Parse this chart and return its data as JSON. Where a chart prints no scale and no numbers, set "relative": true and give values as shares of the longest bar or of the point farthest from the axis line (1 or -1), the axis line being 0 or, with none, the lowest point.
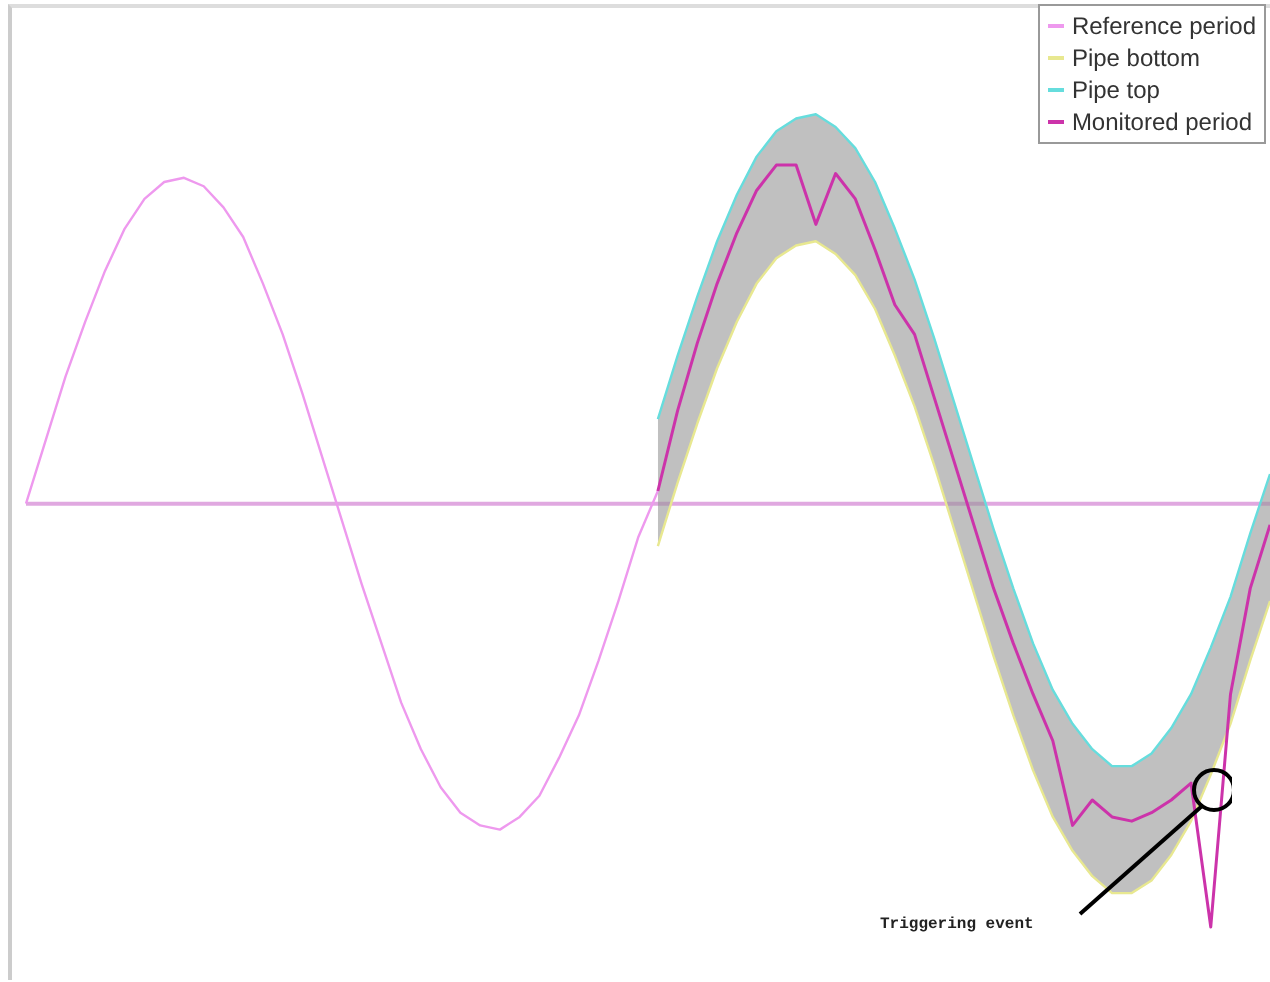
{
  "chart_data": {
    "type": "line",
    "relative": true,
    "legend": "top right",
    "marker": "none",
    "ref_lines": [
      {
        "axis": "y",
        "value": 0,
        "color": "#e0a8e0"
      }
    ],
    "categories": [
      null,
      null,
      null,
      null,
      null,
      null,
      null,
      null,
      null,
      null,
      null,
      null,
      null,
      null,
      null,
      null,
      null,
      null,
      null,
      null,
      null,
      null,
      null,
      null,
      null,
      null,
      null,
      null,
      null,
      null,
      null,
      null,
      null,
      null,
      null,
      null,
      null,
      null,
      null,
      null,
      null,
      null,
      null,
      null,
      null,
      null,
      null,
      null,
      null,
      null,
      null,
      null,
      null,
      null,
      null,
      null,
      null,
      null,
      null,
      null,
      null,
      null,
      null,
      null
    ],
    "series": [
      {
        "name": "Reference period",
        "color": "#ee99ee",
        "values": [
          0,
          0.15,
          0.3,
          0.43,
          0.55,
          0.65,
          0.72,
          0.76,
          0.77,
          0.75,
          0.7,
          0.63,
          0.52,
          0.4,
          0.26,
          0.11,
          -0.04,
          -0.19,
          -0.33,
          -0.47,
          -0.58,
          -0.67,
          -0.73,
          -0.76,
          -0.77,
          -0.74,
          -0.69,
          -0.6,
          -0.5,
          -0.37,
          -0.23,
          -0.08,
          0.03,
          null,
          null,
          null,
          null,
          null,
          null,
          null,
          null,
          null,
          null,
          null,
          null,
          null,
          null,
          null,
          null,
          null,
          null,
          null,
          null,
          null,
          null,
          null,
          null,
          null,
          null,
          null,
          null,
          null,
          null,
          null
        ]
      },
      {
        "name": "Pipe bottom",
        "color": "#e8e890",
        "values": [
          null,
          null,
          null,
          null,
          null,
          null,
          null,
          null,
          null,
          null,
          null,
          null,
          null,
          null,
          null,
          null,
          null,
          null,
          null,
          null,
          null,
          null,
          null,
          null,
          null,
          null,
          null,
          null,
          null,
          null,
          null,
          null,
          -0.1,
          0.05,
          0.19,
          0.32,
          0.43,
          0.52,
          0.58,
          0.61,
          0.62,
          0.59,
          0.54,
          0.46,
          0.35,
          0.23,
          0.09,
          -0.06,
          -0.21,
          -0.36,
          -0.5,
          -0.63,
          -0.74,
          -0.82,
          -0.88,
          -0.92,
          -0.92,
          -0.89,
          -0.83,
          -0.75,
          -0.64,
          -0.52,
          -0.37,
          -0.23
        ]
      },
      {
        "name": "Pipe top",
        "color": "#66dddd",
        "values": [
          null,
          null,
          null,
          null,
          null,
          null,
          null,
          null,
          null,
          null,
          null,
          null,
          null,
          null,
          null,
          null,
          null,
          null,
          null,
          null,
          null,
          null,
          null,
          null,
          null,
          null,
          null,
          null,
          null,
          null,
          null,
          null,
          0.2,
          0.35,
          0.49,
          0.62,
          0.73,
          0.82,
          0.88,
          0.91,
          0.92,
          0.89,
          0.84,
          0.76,
          0.65,
          0.53,
          0.39,
          0.24,
          0.09,
          -0.06,
          -0.2,
          -0.33,
          -0.44,
          -0.52,
          -0.58,
          -0.62,
          -0.62,
          -0.59,
          -0.53,
          -0.45,
          -0.34,
          -0.22,
          -0.07,
          0.07
        ]
      },
      {
        "name": "Monitored period",
        "color": "#cc33aa",
        "values": [
          null,
          null,
          null,
          null,
          null,
          null,
          null,
          null,
          null,
          null,
          null,
          null,
          null,
          null,
          null,
          null,
          null,
          null,
          null,
          null,
          null,
          null,
          null,
          null,
          null,
          null,
          null,
          null,
          null,
          null,
          null,
          null,
          0.03,
          0.22,
          0.38,
          0.52,
          0.64,
          0.74,
          0.8,
          0.8,
          0.66,
          0.78,
          0.72,
          0.6,
          0.47,
          0.4,
          0.25,
          0.1,
          -0.05,
          -0.2,
          -0.33,
          -0.45,
          -0.56,
          -0.76,
          -0.7,
          -0.74,
          -0.75,
          -0.73,
          -0.7,
          -0.66,
          -1,
          -0.45,
          -0.2,
          -0.05
        ],
        "lower": [
          null,
          null,
          null,
          null,
          null,
          null,
          null,
          null,
          null,
          null,
          null,
          null,
          null,
          null,
          null,
          null,
          null,
          null,
          null,
          null,
          null,
          null,
          null,
          null,
          null,
          null,
          null,
          null,
          null,
          null,
          null,
          null,
          -0.1,
          0.05,
          0.19,
          0.32,
          0.43,
          0.52,
          0.58,
          0.61,
          0.62,
          0.59,
          0.54,
          0.46,
          0.35,
          0.23,
          0.09,
          -0.06,
          -0.21,
          -0.36,
          -0.5,
          -0.63,
          -0.74,
          -0.82,
          -0.88,
          -0.92,
          -0.92,
          -0.89,
          -0.83,
          -0.75,
          -0.64,
          -0.52,
          -0.37,
          -0.23
        ],
        "upper": [
          null,
          null,
          null,
          null,
          null,
          null,
          null,
          null,
          null,
          null,
          null,
          null,
          null,
          null,
          null,
          null,
          null,
          null,
          null,
          null,
          null,
          null,
          null,
          null,
          null,
          null,
          null,
          null,
          null,
          null,
          null,
          null,
          0.2,
          0.35,
          0.49,
          0.62,
          0.73,
          0.82,
          0.88,
          0.91,
          0.92,
          0.89,
          0.84,
          0.76,
          0.65,
          0.53,
          0.39,
          0.24,
          0.09,
          -0.06,
          -0.2,
          -0.33,
          -0.44,
          -0.52,
          -0.58,
          -0.62,
          -0.62,
          -0.59,
          -0.53,
          -0.45,
          -0.34,
          -0.22,
          -0.07,
          0.07
        ]
      }
    ],
    "annotations": [
      "Triggering event"
    ]
  }
}
